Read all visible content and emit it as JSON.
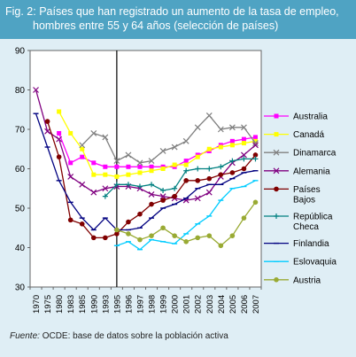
{
  "figure": {
    "title_line1": "Fig. 2: Países que han registrado un aumento de la tasa de empleo,",
    "title_line2": "hombres entre 55 y 64 años (selección de países)",
    "source_label": "Fuente:",
    "source_text": " OCDE: base de datos sobre la población activa"
  },
  "chart_data": {
    "type": "line",
    "title": "Fig. 2: Países que han registrado un aumento de la tasa de empleo, hombres entre 55 y 64 años (selección de países)",
    "xlabel": "",
    "ylabel": "",
    "ylim": [
      30,
      90
    ],
    "yticks": [
      30,
      40,
      50,
      60,
      70,
      80,
      90
    ],
    "x": [
      1970,
      1975,
      1980,
      1983,
      1985,
      1990,
      1993,
      1995,
      1996,
      1997,
      1998,
      1999,
      2000,
      2001,
      2002,
      2003,
      2004,
      2005,
      2006,
      2007
    ],
    "xtick_labels": [
      "1970",
      "1975",
      "1980",
      "1983",
      "1985",
      "1990",
      "1993",
      "1995",
      "1996",
      "1997",
      "1998",
      "1999",
      "2000",
      "2001",
      "2002",
      "2003",
      "2004",
      "2005",
      "2006",
      "2007"
    ],
    "grid": false,
    "legend_position": "right",
    "series": [
      {
        "name": "Australia",
        "color": "#ff00ff",
        "marker": "square",
        "values": [
          null,
          null,
          69,
          61.5,
          63,
          61.5,
          60.5,
          60.5,
          60.5,
          60.5,
          60.5,
          60.5,
          60.5,
          62,
          63.5,
          64.5,
          66,
          67,
          67.5,
          68
        ]
      },
      {
        "name": "Canadá",
        "color": "#ffff00",
        "marker": "square",
        "values": [
          null,
          null,
          74.5,
          69,
          65,
          58.5,
          58.5,
          58,
          58.5,
          59,
          59.5,
          60,
          61,
          61,
          63,
          65,
          65.5,
          66,
          66.5,
          67
        ]
      },
      {
        "name": "Dinamarca",
        "color": "#808080",
        "marker": "x",
        "values": [
          null,
          null,
          null,
          null,
          66,
          69,
          68,
          62,
          63.5,
          61.5,
          62,
          64.5,
          65.5,
          67,
          70.5,
          73.5,
          70,
          70.5,
          70.5,
          66.5
        ]
      },
      {
        "name": "Alemania",
        "color": "#800080",
        "marker": "x",
        "values": [
          80,
          69.5,
          67.5,
          58,
          56,
          54,
          55,
          55.5,
          55.5,
          55,
          53.5,
          53,
          52.5,
          52,
          52.5,
          54,
          58,
          61.5,
          63.5,
          66
        ]
      },
      {
        "name": "Países Bajos",
        "color": "#800000",
        "marker": "circle",
        "values": [
          null,
          72,
          63,
          47,
          46,
          42.5,
          42.5,
          43.5,
          46.5,
          48.5,
          51,
          52,
          53,
          57,
          57,
          57.5,
          58.5,
          59,
          60,
          63.5
        ]
      },
      {
        "name": "República Checa",
        "color": "#008080",
        "marker": "plus",
        "values": [
          null,
          null,
          null,
          null,
          null,
          null,
          53,
          56,
          56,
          55.5,
          56,
          54.5,
          55,
          59.5,
          60,
          60,
          60.5,
          62,
          62.5,
          62.5
        ]
      },
      {
        "name": "Finlandia",
        "color": "#000080",
        "marker": "dash",
        "values": [
          74,
          65.5,
          57,
          51.5,
          47.5,
          44.5,
          47.5,
          44.5,
          44.5,
          45,
          47.5,
          50,
          51,
          52.5,
          55,
          56,
          56,
          57.5,
          59,
          59.5
        ]
      },
      {
        "name": "Eslovaquia",
        "color": "#00ccff",
        "marker": "dash",
        "values": [
          null,
          null,
          null,
          null,
          null,
          null,
          null,
          40.5,
          41.5,
          39.5,
          42,
          41.5,
          41,
          43.5,
          46,
          48,
          52,
          55,
          55.5,
          57
        ]
      },
      {
        "name": "Austria",
        "color": "#99aa33",
        "marker": "circle",
        "values": [
          null,
          null,
          null,
          null,
          null,
          null,
          null,
          44.5,
          43.5,
          42,
          43,
          45,
          43,
          41.5,
          42.5,
          43,
          40.5,
          43,
          47.5,
          51.5
        ]
      }
    ]
  }
}
